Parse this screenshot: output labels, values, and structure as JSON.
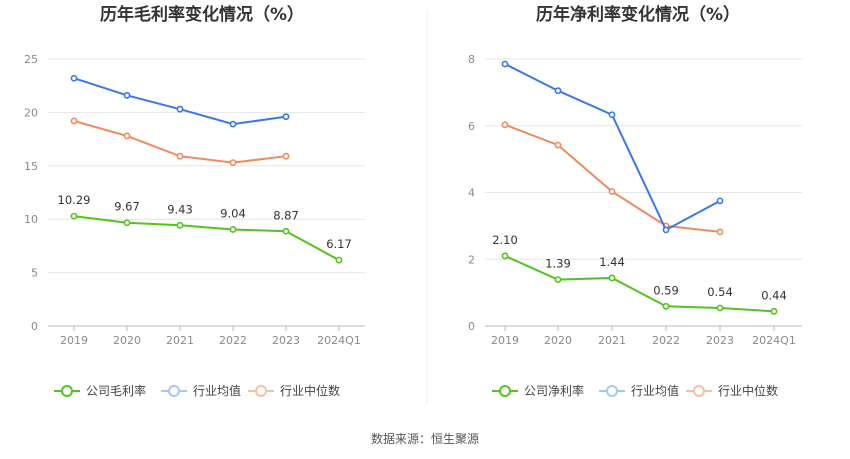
{
  "chart_data": [
    {
      "type": "line",
      "title": "历年毛利率变化情况（%）",
      "categories": [
        "2019",
        "2020",
        "2021",
        "2022",
        "2023",
        "2024Q1"
      ],
      "ylim": [
        0,
        25
      ],
      "yticks": [
        "0",
        "5",
        "10",
        "15",
        "20",
        "25"
      ],
      "grid": true,
      "legend_position": "bottom",
      "series": [
        {
          "name": "公司毛利率",
          "color": "#52c41a",
          "values": [
            10.29,
            9.67,
            9.43,
            9.04,
            8.87,
            6.17
          ],
          "labels": [
            "10.29",
            "9.67",
            "9.43",
            "9.04",
            "8.87",
            "6.17"
          ]
        },
        {
          "name": "行业均值",
          "color": "#3b78e7",
          "values": [
            23.2,
            21.6,
            20.3,
            18.9,
            19.6,
            null
          ]
        },
        {
          "name": "行业中位数",
          "color": "#f08a5d",
          "values": [
            19.2,
            17.8,
            15.9,
            15.3,
            15.9,
            null
          ]
        }
      ]
    },
    {
      "type": "line",
      "title": "历年净利率变化情况（%）",
      "categories": [
        "2019",
        "2020",
        "2021",
        "2022",
        "2023",
        "2024Q1"
      ],
      "ylim": [
        0,
        8
      ],
      "yticks": [
        "0",
        "2",
        "4",
        "6",
        "8"
      ],
      "grid": true,
      "legend_position": "bottom",
      "series": [
        {
          "name": "公司净利率",
          "color": "#52c41a",
          "values": [
            2.1,
            1.39,
            1.44,
            0.59,
            0.54,
            0.44
          ],
          "labels": [
            "2.10",
            "1.39",
            "1.44",
            "0.59",
            "0.54",
            "0.44"
          ]
        },
        {
          "name": "行业均值",
          "color": "#3b78e7",
          "values": [
            7.85,
            7.05,
            6.33,
            2.88,
            3.75,
            null
          ]
        },
        {
          "name": "行业中位数",
          "color": "#f08a5d",
          "values": [
            6.03,
            5.42,
            4.03,
            3.0,
            2.82,
            null
          ]
        }
      ]
    }
  ],
  "source": "数据来源：恒生聚源",
  "legend_faded_color": {
    "行业均值": "#a9c6f5",
    "行业中位数": "#f6bfa5"
  }
}
